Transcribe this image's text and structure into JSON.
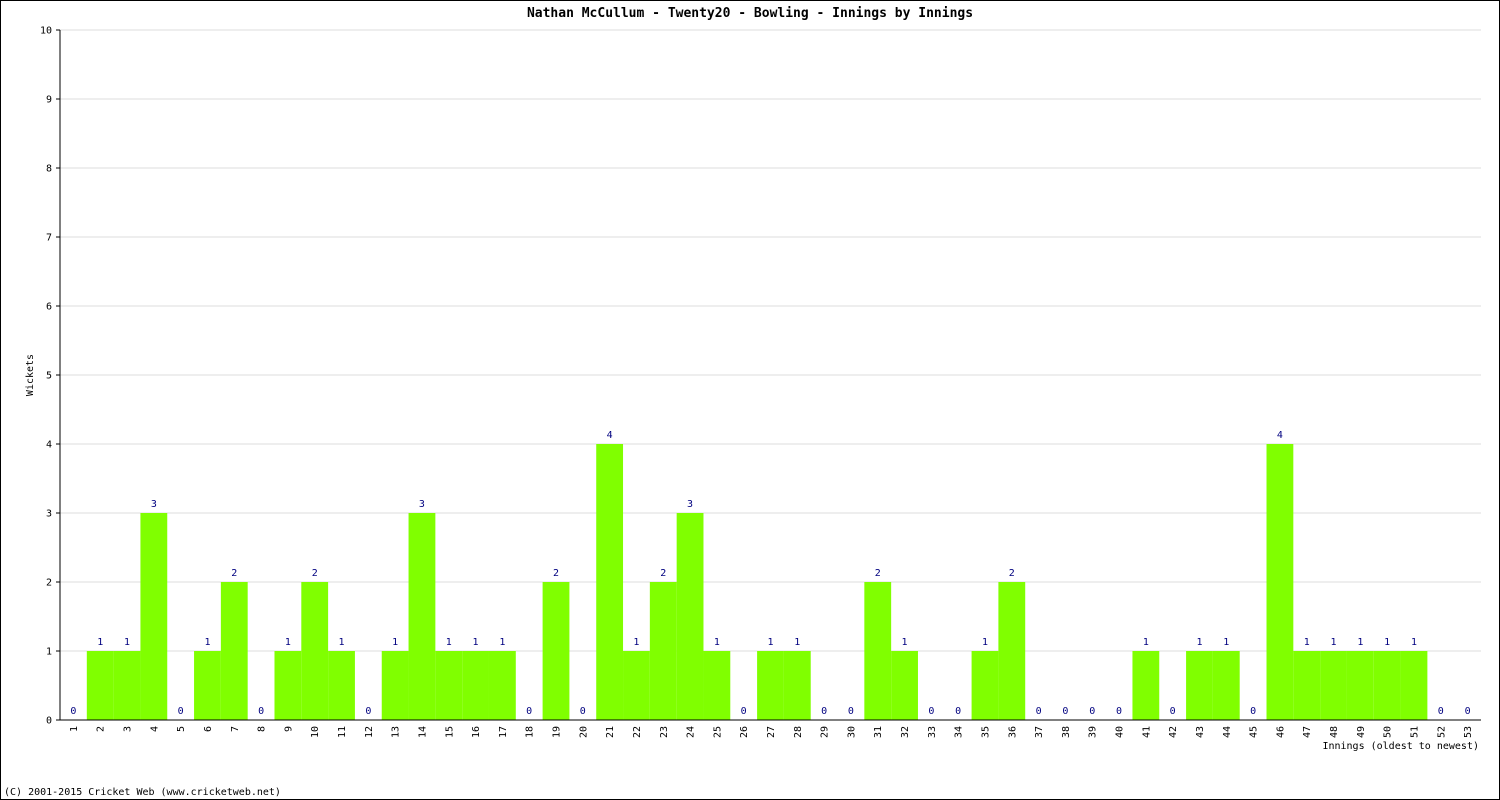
{
  "chart_data": {
    "type": "bar",
    "title": "Nathan McCullum - Twenty20 - Bowling - Innings by Innings",
    "x_label": "Innings (oldest to newest)",
    "y_label": "Wickets",
    "footer": "(C) 2001-2015 Cricket Web (www.cricketweb.net)",
    "categories": [
      "1",
      "2",
      "3",
      "4",
      "5",
      "6",
      "7",
      "8",
      "9",
      "10",
      "11",
      "12",
      "13",
      "14",
      "15",
      "16",
      "17",
      "18",
      "19",
      "20",
      "21",
      "22",
      "23",
      "24",
      "25",
      "26",
      "27",
      "28",
      "29",
      "30",
      "31",
      "32",
      "33",
      "34",
      "35",
      "36",
      "37",
      "38",
      "39",
      "40",
      "41",
      "42",
      "43",
      "44",
      "45",
      "46",
      "47",
      "48",
      "49",
      "50",
      "51",
      "52",
      "53"
    ],
    "values": [
      0,
      1,
      1,
      3,
      0,
      1,
      2,
      0,
      1,
      2,
      1,
      0,
      1,
      3,
      1,
      1,
      1,
      0,
      2,
      0,
      4,
      1,
      2,
      3,
      1,
      0,
      1,
      1,
      0,
      0,
      2,
      1,
      0,
      0,
      1,
      2,
      0,
      0,
      0,
      0,
      1,
      0,
      1,
      1,
      0,
      4,
      1,
      1,
      1,
      1,
      1,
      0,
      0
    ],
    "color": "#80ff00",
    "label_color": "#000080",
    "ylim": [
      0,
      10
    ],
    "yticks": [
      0,
      1,
      2,
      3,
      4,
      5,
      6,
      7,
      8,
      9,
      10
    ],
    "grid": true
  }
}
